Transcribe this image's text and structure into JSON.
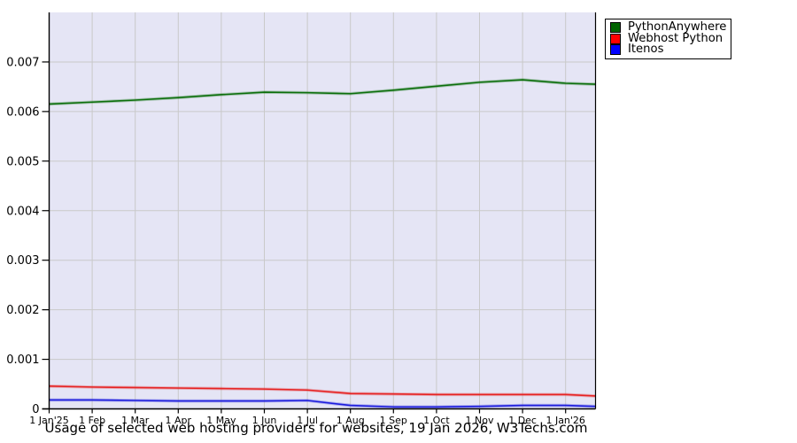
{
  "title": "Usage of selected web hosting providers for websites, 19 Jan 2026, W3Techs.com",
  "colors": {
    "plot_background": "#e5e5f5",
    "gridline": "#c9c9c9",
    "axis": "#000000",
    "page_background": "#ffffff"
  },
  "legend": {
    "position": "top-right"
  },
  "chart_data": {
    "type": "line",
    "title": "Usage of selected web hosting providers for websites, 19 Jan 2026, W3Techs.com",
    "grid": true,
    "legend_position": "top-right",
    "ylim": [
      0,
      0.008
    ],
    "xlim_months": [
      0,
      12.7
    ],
    "y_tick_labels": [
      "0",
      "0.001",
      "0.002",
      "0.003",
      "0.004",
      "0.005",
      "0.006",
      "0.007"
    ],
    "y_tick_values": [
      0,
      0.001,
      0.002,
      0.003,
      0.004,
      0.005,
      0.006,
      0.007
    ],
    "x_tick_labels": [
      "1 Jan'25",
      "1 Feb",
      "1 Mar",
      "1 Apr",
      "1 May",
      "1 Jun",
      "1 Jul",
      "1 Aug",
      "1 Sep",
      "1 Oct",
      "1 Nov",
      "1 Dec",
      "1 Jan'26"
    ],
    "x_months": [
      0,
      1,
      2,
      3,
      4,
      5,
      6,
      7,
      8,
      9,
      10,
      11,
      12,
      12.7
    ],
    "series": [
      {
        "name": "PythonAnywhere",
        "swatch_color": "#006400",
        "line_color": "#0b6e0b",
        "values": [
          0.00615,
          0.00619,
          0.00623,
          0.00628,
          0.00634,
          0.00639,
          0.00638,
          0.00636,
          0.00643,
          0.00651,
          0.00659,
          0.00664,
          0.00657,
          0.00655
        ]
      },
      {
        "name": "Webhost Python",
        "swatch_color": "#ff0000",
        "line_color": "#e62222",
        "values": [
          0.00046,
          0.00044,
          0.00043,
          0.00042,
          0.00041,
          0.0004,
          0.00038,
          0.00031,
          0.0003,
          0.00029,
          0.00029,
          0.00029,
          0.00029,
          0.00026
        ]
      },
      {
        "name": "Itenos",
        "swatch_color": "#0000ff",
        "line_color": "#1c1cdd",
        "values": [
          0.00018,
          0.00018,
          0.00017,
          0.00016,
          0.00016,
          0.00016,
          0.00017,
          7e-05,
          4e-05,
          4e-05,
          5e-05,
          7e-05,
          7e-05,
          5e-05
        ]
      }
    ]
  }
}
